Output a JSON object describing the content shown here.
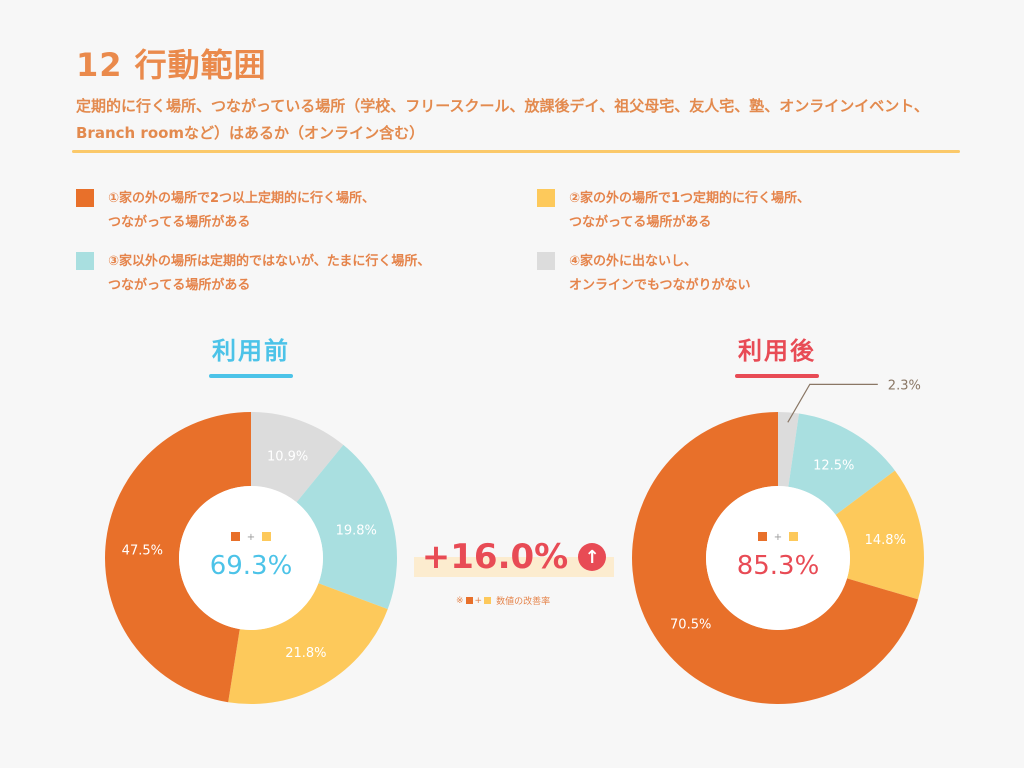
{
  "header": {
    "title": "12 行動範囲",
    "subtitle": "定期的に行く場所、つながっている場所（学校、フリースクール、放課後デイ、祖父母宅、友人宅、塾、オンラインイベント、Branch roomなど）はあるか（オンライン含む）"
  },
  "legend": [
    {
      "lines": [
        "①家の外の場所で2つ以上定期的に行く場所、",
        "つながってる場所がある"
      ],
      "color": "#e8702a"
    },
    {
      "lines": [
        "②家の外の場所で1つ定期的に行く場所、",
        "つながってる場所がある"
      ],
      "color": "#fdc95b"
    },
    {
      "lines": [
        "③家以外の場所は定期的ではないが、たまに行く場所、",
        "つながってる場所がある"
      ],
      "color": "#a9dfe0"
    },
    {
      "lines": [
        "④家の外に出ないし、",
        "オンラインでもつながりがない"
      ],
      "color": "#dcdcdc"
    }
  ],
  "chart_data": [
    {
      "type": "pie",
      "title": "利用前",
      "categories": [
        "①",
        "②",
        "③",
        "④"
      ],
      "values": [
        47.5,
        21.8,
        19.8,
        10.9
      ],
      "labels": [
        "47.5%",
        "21.8%",
        "19.8%",
        "10.9%"
      ],
      "center_value": "69.3%",
      "title_color": "#4cc3e8"
    },
    {
      "type": "pie",
      "title": "利用後",
      "categories": [
        "①",
        "②",
        "③",
        "④"
      ],
      "values": [
        70.5,
        14.8,
        12.5,
        2.3
      ],
      "labels": [
        "70.5%",
        "14.8%",
        "12.5%",
        "2.3%"
      ],
      "center_value": "85.3%",
      "title_color": "#e84b55"
    }
  ],
  "improvement": {
    "value": "+16.0%",
    "arrow": "↑",
    "note_prefix": "※",
    "note_plus": "+",
    "note_suffix": "数値の改善率"
  },
  "center_plus": "+"
}
